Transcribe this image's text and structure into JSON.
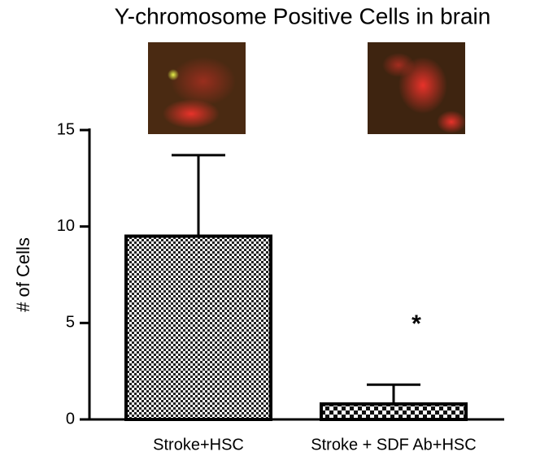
{
  "chart_data": {
    "type": "bar",
    "title": "Y-chromosome Positive Cells in brain",
    "y_label": "# of Cells",
    "categories": [
      "Stroke+HSC",
      "Stroke + SDF Ab+HSC"
    ],
    "values": [
      9.5,
      0.8
    ],
    "errors": [
      4.2,
      1.0
    ],
    "annotation": "*",
    "ylim": [
      0,
      15
    ],
    "yticks": [
      0,
      5,
      10,
      15
    ]
  }
}
